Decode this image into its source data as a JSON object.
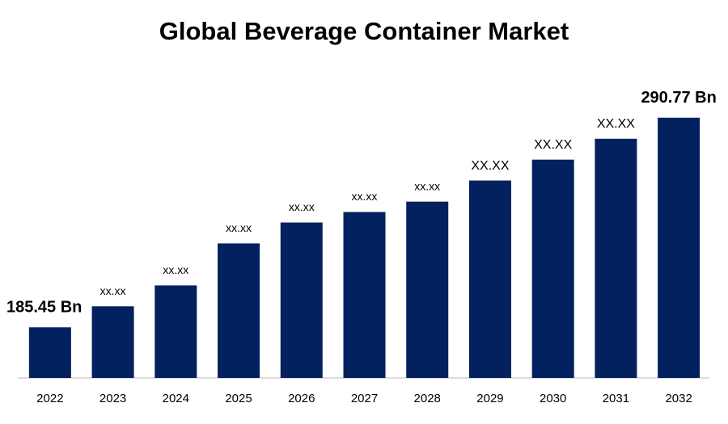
{
  "chart_data": {
    "type": "bar",
    "title": "Global Beverage Container Market",
    "categories": [
      "2022",
      "2023",
      "2024",
      "2025",
      "2026",
      "2027",
      "2028",
      "2029",
      "2030",
      "2031",
      "2032"
    ],
    "values": [
      185.45,
      196,
      206.5,
      227.6,
      238.1,
      243.4,
      248.6,
      259.2,
      269.7,
      280.2,
      290.77
    ],
    "value_labels": [
      "185.45  Bn",
      "xx.xx",
      "xx.xx",
      "xx.xx",
      "xx.xx",
      "xx.xx",
      "xx.xx",
      "XX.XX",
      "XX.XX",
      "XX.XX",
      "290.77 Bn"
    ],
    "color": "#03215e",
    "ylim": [
      160,
      300
    ]
  }
}
